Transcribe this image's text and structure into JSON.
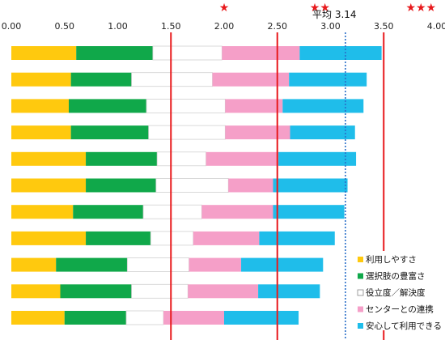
{
  "chart_data": {
    "type": "bar",
    "orientation": "horizontal",
    "stacked": true,
    "xlim": [
      0,
      4.0
    ],
    "x_ticks": [
      "0.00",
      "0.50",
      "1.00",
      "1.50",
      "2.00",
      "2.50",
      "3.00",
      "3.50",
      "4.00"
    ],
    "x_tick_values": [
      0,
      0.5,
      1.0,
      1.5,
      2.0,
      2.5,
      3.0,
      3.5,
      4.0
    ],
    "grid": false,
    "legend_position": "bottom-right",
    "reference_lines": [
      {
        "value": 1.5,
        "style": "solid",
        "color": "#e8191c"
      },
      {
        "value": 2.5,
        "style": "solid",
        "color": "#e8191c"
      },
      {
        "value": 3.5,
        "style": "solid",
        "color": "#e8191c"
      },
      {
        "value": 3.14,
        "style": "dotted",
        "color": "#2a6fc9"
      }
    ],
    "average_label": "平均 3.14",
    "star_markers": [
      {
        "value": 2.0,
        "text": "★"
      },
      {
        "value": 2.9,
        "text": "★★"
      },
      {
        "value": 3.85,
        "text": "★★★"
      }
    ],
    "series": [
      {
        "name": "利用しやすさ",
        "color": "#ffc90e",
        "values": [
          0.61,
          0.56,
          0.54,
          0.56,
          0.7,
          0.7,
          0.58,
          0.7,
          0.42,
          0.46,
          0.5
        ]
      },
      {
        "name": "選択肢の豊富さ",
        "color": "#10a84a",
        "values": [
          0.72,
          0.57,
          0.73,
          0.73,
          0.67,
          0.66,
          0.66,
          0.61,
          0.67,
          0.67,
          0.58
        ]
      },
      {
        "name": "役立度／解決度",
        "color": "#ffffff",
        "values": [
          0.65,
          0.76,
          0.74,
          0.72,
          0.46,
          0.68,
          0.55,
          0.4,
          0.58,
          0.53,
          0.35
        ]
      },
      {
        "name": "センターとの連携",
        "color": "#f59fc8",
        "values": [
          0.73,
          0.72,
          0.54,
          0.61,
          0.68,
          0.42,
          0.67,
          0.62,
          0.49,
          0.66,
          0.57
        ]
      },
      {
        "name": "安心して利用できる",
        "color": "#1fbdea",
        "values": [
          0.77,
          0.73,
          0.76,
          0.61,
          0.73,
          0.7,
          0.67,
          0.71,
          0.77,
          0.58,
          0.7
        ]
      }
    ]
  }
}
